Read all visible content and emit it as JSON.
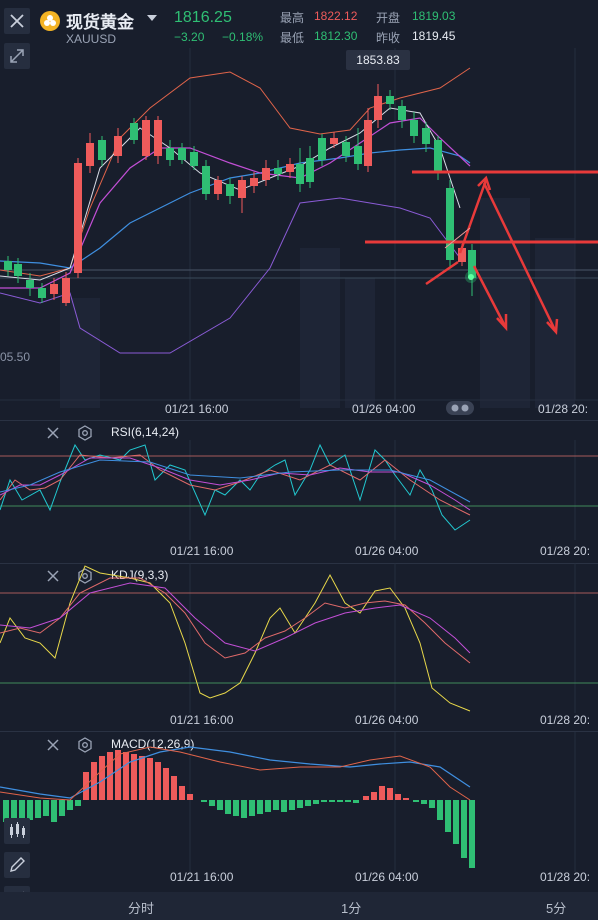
{
  "header": {
    "title": "现货黄金",
    "symbol": "XAUUSD",
    "price": "1816.25",
    "change": "−3.20",
    "change_pct": "−0.18%",
    "high_label": "最高",
    "high_value": "1822.12",
    "low_label": "最低",
    "low_value": "1812.30",
    "open_label": "开盘",
    "open_value": "1819.03",
    "prev_close_label": "昨收",
    "prev_close_value": "1819.45"
  },
  "main_chart": {
    "peak_tag": "1853.83",
    "left_tag": "05.50",
    "time_labels": [
      "01/21 16:00",
      "01/26 04:00"
    ],
    "colors": {
      "up": "#ef5b5b",
      "down": "#2fbf74",
      "ma_white": "#d8dce6",
      "ma_purple": "#c24fd6",
      "ma_blue": "#3f8fe0",
      "bb": "#e0644a",
      "bb_low": "#8a5bd6",
      "arrow": "#e83a3a"
    }
  },
  "indicators": {
    "rsi": {
      "title": "RSI(6,14,24)",
      "time_labels": [
        "01/21 16:00",
        "01/26 04:00",
        "01/28 20:"
      ]
    },
    "kdj": {
      "title": "KDJ(9,3,3)",
      "time_labels": [
        "01/21 16:00",
        "01/26 04:00",
        "01/28 20:"
      ]
    },
    "macd": {
      "title": "MACD(12,26,9)",
      "time_labels": [
        "01/21 16:00",
        "01/26 04:00",
        "01/28 20:"
      ]
    }
  },
  "main_time_extra": "01/28 20:",
  "icons": [
    "close-icon",
    "gold-coin-icon",
    "chevron-down-icon",
    "collapse-icon",
    "close-icon",
    "settings-icon",
    "candlestick-icon",
    "pencil-icon",
    "indicator-icon"
  ],
  "tabs": [
    "分时",
    "1分",
    "5分"
  ]
}
